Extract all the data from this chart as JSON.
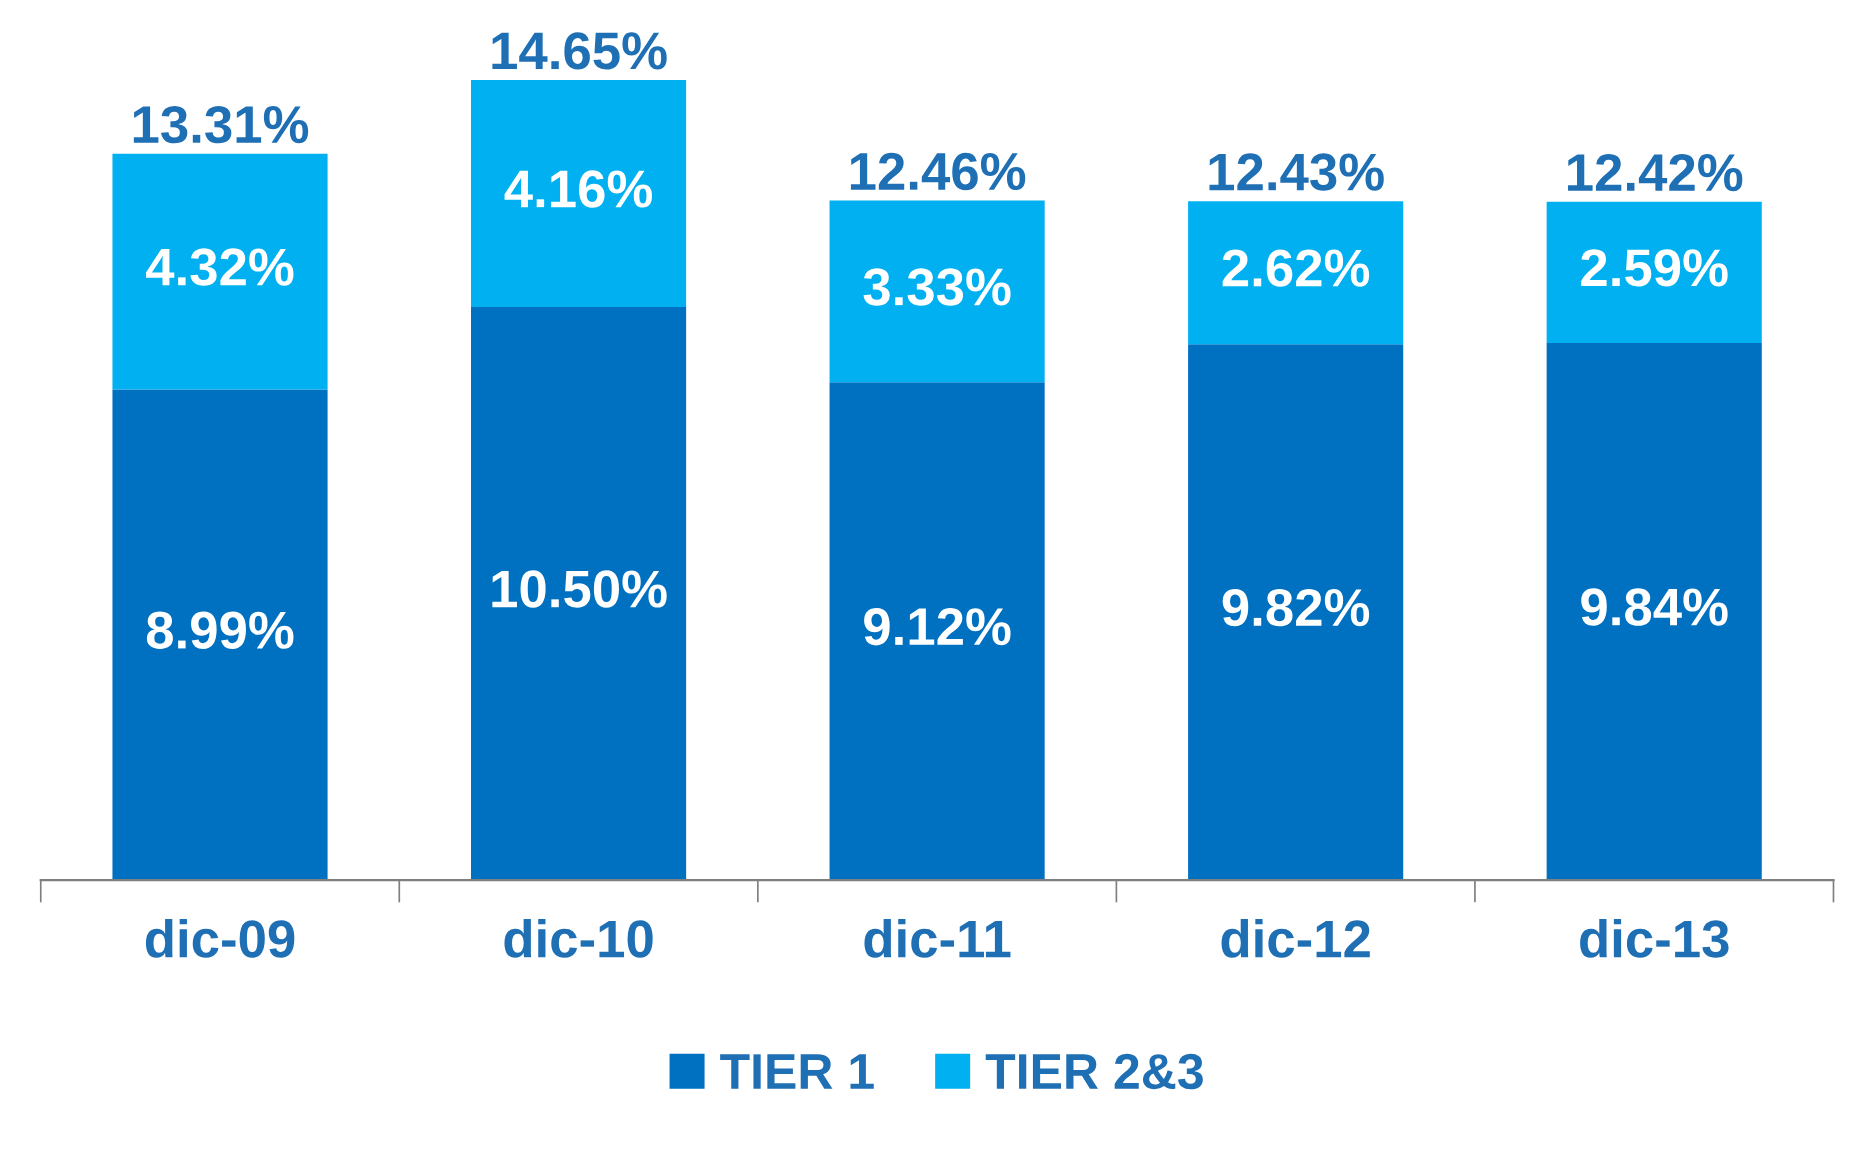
{
  "chart_data": {
    "type": "bar",
    "stacked": true,
    "categories": [
      "dic-09",
      "dic-10",
      "dic-11",
      "dic-12",
      "dic-13"
    ],
    "series": [
      {
        "name": "TIER 1",
        "color": "#0070c0",
        "values": [
          8.99,
          10.5,
          9.12,
          9.82,
          9.84
        ],
        "value_labels": [
          "8.99%",
          "10.50%",
          "9.12%",
          "9.82%",
          "9.84%"
        ]
      },
      {
        "name": "TIER 2&3",
        "color": "#00b0f0",
        "values": [
          4.32,
          4.16,
          3.33,
          2.62,
          2.59
        ],
        "value_labels": [
          "4.32%",
          "4.16%",
          "3.33%",
          "2.62%",
          "2.59%"
        ]
      }
    ],
    "totals": [
      "13.31%",
      "14.65%",
      "12.46%",
      "12.43%",
      "12.42%"
    ],
    "legend": "bottom",
    "grid": false
  }
}
